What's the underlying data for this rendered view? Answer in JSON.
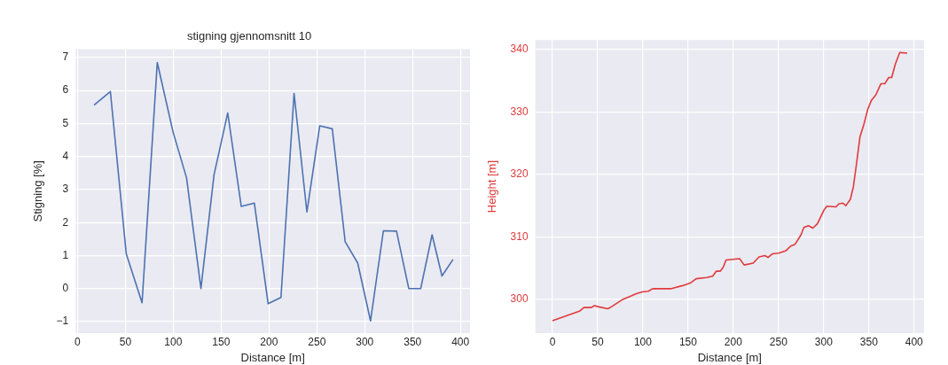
{
  "chart_data": [
    {
      "type": "line",
      "title": "stigning gjennomsnitt 10",
      "xlabel": "Distance [m]",
      "ylabel": "Stigning [%]",
      "xlim": [
        -2,
        410
      ],
      "ylim": [
        -1.35,
        7.25
      ],
      "xticks": [
        0,
        50,
        100,
        150,
        200,
        250,
        300,
        350,
        400
      ],
      "yticks": [
        -1,
        0,
        1,
        2,
        3,
        4,
        5,
        6,
        7
      ],
      "grid": true,
      "legend": false,
      "x": [
        17.2,
        34.3,
        50.9,
        67.4,
        83.3,
        99.8,
        113.9,
        128.9,
        142.6,
        156.9,
        171.0,
        184.7,
        199.1,
        212.5,
        226.2,
        239.6,
        253.0,
        266.1,
        279.6,
        292.7,
        306.1,
        319.5,
        333.2,
        346.0,
        358.5,
        370.4,
        380.7,
        392.2
      ],
      "series": [
        {
          "color": "#4c72b0",
          "values": [
            5.56,
            5.97,
            1.05,
            -0.43,
            6.85,
            4.74,
            3.35,
            0.0,
            3.45,
            5.32,
            2.49,
            2.59,
            -0.46,
            -0.27,
            5.91,
            2.32,
            4.93,
            4.84,
            1.42,
            0.77,
            -0.98,
            1.75,
            1.74,
            0.0,
            0.0,
            1.63,
            0.38,
            0.88
          ]
        }
      ]
    },
    {
      "type": "line",
      "xlabel": "Distance [m]",
      "ylabel": "Height [m]",
      "xlim": [
        -19,
        411
      ],
      "ylim": [
        294.6,
        341.5
      ],
      "xticks": [
        0,
        50,
        100,
        150,
        200,
        250,
        300,
        350,
        400
      ],
      "yticks": [
        300,
        310,
        320,
        330,
        340
      ],
      "grid": true,
      "legend": false,
      "x": [
        0,
        29.8,
        34.8,
        43,
        46.4,
        51.3,
        61.3,
        66.2,
        77.8,
        87.7,
        92.7,
        99.3,
        106,
        110.9,
        130.8,
        144,
        152.3,
        158.9,
        170.5,
        177.2,
        181.1,
        185.4,
        188.7,
        192,
        207,
        212,
        222,
        228.5,
        235,
        238.4,
        243.4,
        250,
        258.3,
        263.2,
        268.2,
        274.8,
        278.1,
        283.1,
        288,
        293,
        300.3,
        303.6,
        313.6,
        316.9,
        321.2,
        324.5,
        329.5,
        332.8,
        336.1,
        340.1,
        344.4,
        348.7,
        352.6,
        357.6,
        363.2,
        367.5,
        371.9,
        375.2,
        379.1,
        384.1,
        392.4
      ],
      "series": [
        {
          "color": "#e03a3c",
          "values": [
            296.6,
            298.1,
            298.7,
            298.7,
            299.0,
            298.8,
            298.5,
            298.9,
            300,
            300.6,
            300.9,
            301.2,
            301.3,
            301.7,
            301.7,
            302.2,
            302.6,
            303.3,
            303.5,
            303.7,
            304.5,
            304.5,
            305.1,
            306.3,
            306.5,
            305.5,
            305.8,
            306.8,
            307.0,
            306.7,
            307.3,
            307.4,
            307.8,
            308.5,
            308.8,
            310.3,
            311.5,
            311.8,
            311.4,
            312.1,
            314.3,
            314.9,
            314.8,
            315.3,
            315.4,
            315.0,
            316,
            318,
            321.5,
            326,
            328,
            330.4,
            331.8,
            332.7,
            334.5,
            334.5,
            335.5,
            335.5,
            337.6,
            339.5,
            339.4
          ]
        }
      ]
    }
  ]
}
